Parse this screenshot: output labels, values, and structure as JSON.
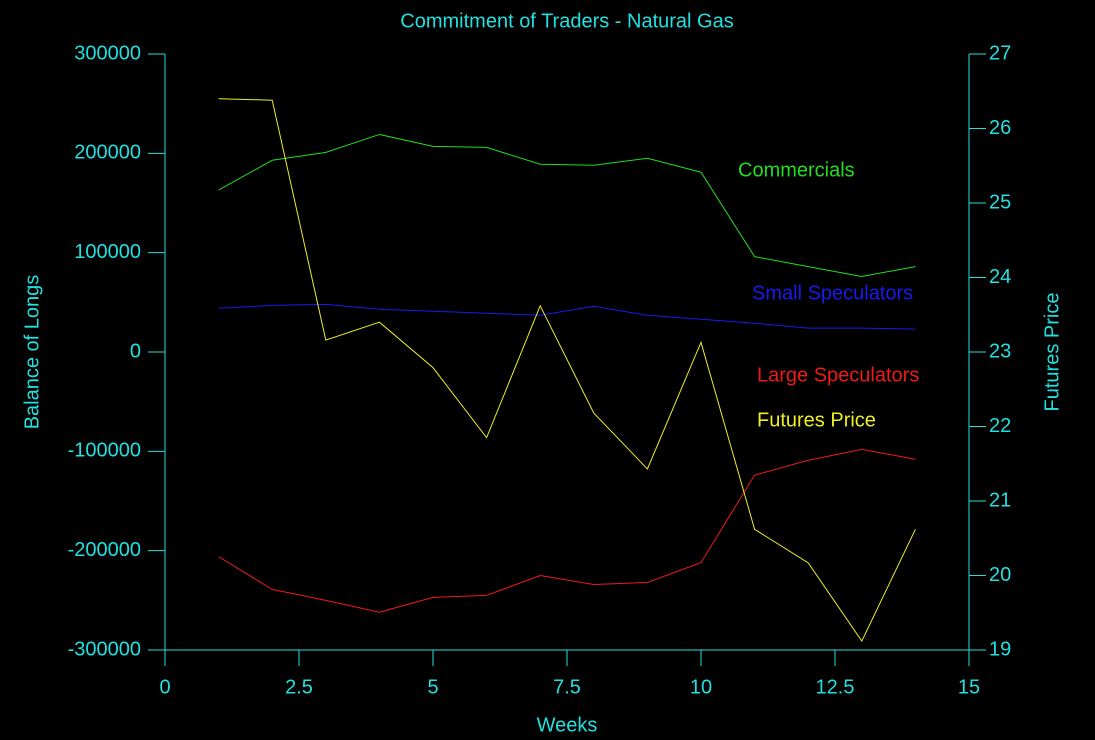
{
  "chart_data": {
    "type": "line",
    "title": "Commitment of Traders - Natural Gas",
    "x_label": "Weeks",
    "y_label": "Balance of Longs",
    "y2_label": "Futures Price",
    "x": [
      1,
      2,
      3,
      4,
      5,
      6,
      7,
      8,
      9,
      10,
      11,
      12,
      13,
      14
    ],
    "xlim": [
      0,
      15
    ],
    "xticks": [
      0,
      2.5,
      5,
      7.5,
      10,
      12.5,
      15
    ],
    "ylim": [
      -300000,
      300000
    ],
    "yticks": [
      -300000,
      -200000,
      -100000,
      0,
      100000,
      200000,
      300000
    ],
    "y2lim": [
      19,
      27
    ],
    "y2ticks": [
      19,
      20,
      21,
      22,
      23,
      24,
      25,
      26,
      27
    ],
    "axis_color": "#22e0e0",
    "series": [
      {
        "name": "Commercials",
        "color": "#22dd22",
        "values": [
          163000,
          193000,
          201000,
          219000,
          207000,
          206000,
          189000,
          188000,
          195000,
          181000,
          96000,
          86000,
          76000,
          86000
        ]
      },
      {
        "name": "Small Speculators",
        "color": "#1a1aee",
        "values": [
          44000,
          47000,
          48000,
          43000,
          41000,
          39000,
          37000,
          46000,
          37000,
          33000,
          29000,
          24000,
          24000,
          23000
        ]
      },
      {
        "name": "Large Speculators",
        "color": "#ee1a1a",
        "values": [
          -206000,
          -239000,
          -250000,
          -262000,
          -247000,
          -245000,
          -225000,
          -234000,
          -232000,
          -212000,
          -124000,
          -109000,
          -98000,
          -108000
        ]
      },
      {
        "name": "Futures Price",
        "color": "#eeee22",
        "axis": "y2",
        "values": [
          26.4,
          26.38,
          23.16,
          23.4,
          22.79,
          21.85,
          23.62,
          22.18,
          21.43,
          23.13,
          20.62,
          20.17,
          19.12,
          20.62
        ]
      }
    ]
  }
}
